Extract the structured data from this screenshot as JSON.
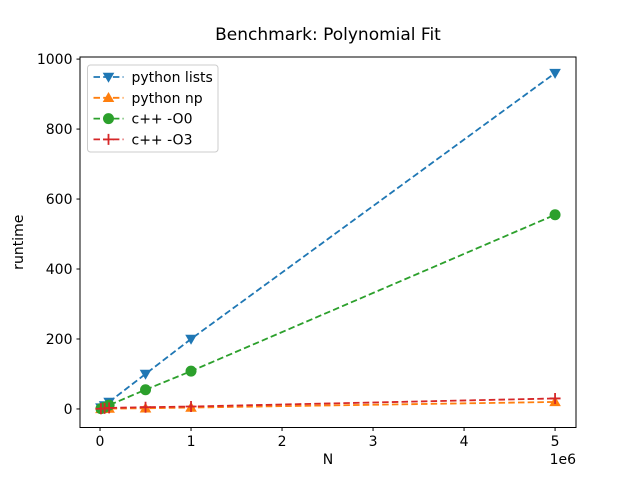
{
  "figure": {
    "title": "Benchmark: Polynomial Fit",
    "xlabel": "N",
    "ylabel": "runtime",
    "x_offset_text": "1e6"
  },
  "axes": {
    "x_tick_labels": [
      "0",
      "1",
      "2",
      "3",
      "4",
      "5"
    ],
    "x_tick_values": [
      0,
      1000000,
      2000000,
      3000000,
      4000000,
      5000000
    ],
    "y_tick_labels": [
      "0",
      "200",
      "400",
      "600",
      "800",
      "1000"
    ],
    "y_tick_values": [
      0,
      200,
      400,
      600,
      800,
      1000
    ],
    "xlim": [
      -220000,
      5230000
    ],
    "ylim": [
      -53,
      1006
    ]
  },
  "legend": {
    "position": "upper-left",
    "entries": [
      {
        "label": "python lists",
        "color": "#1f77b4",
        "marker": "triangle-down",
        "linestyle": "dashed"
      },
      {
        "label": "python np",
        "color": "#ff7f0e",
        "marker": "triangle-up",
        "linestyle": "dashed"
      },
      {
        "label": "c++ -O0",
        "color": "#2ca02c",
        "marker": "circle",
        "linestyle": "dashed"
      },
      {
        "label": "c++ -O3",
        "color": "#d62728",
        "marker": "plus",
        "linestyle": "dashed"
      }
    ]
  },
  "chart_data": {
    "type": "line",
    "title": "Benchmark: Polynomial Fit",
    "xlabel": "N",
    "ylabel": "runtime",
    "x_multiplier_label": "1e6",
    "x": [
      10000,
      50000,
      100000,
      500000,
      1000000,
      5000000
    ],
    "series": [
      {
        "name": "python lists",
        "color": "#1f77b4",
        "marker": "triangle-down",
        "values": [
          4,
          10,
          20,
          100,
          200,
          960
        ]
      },
      {
        "name": "python np",
        "color": "#ff7f0e",
        "marker": "triangle-up",
        "values": [
          0.2,
          0.5,
          1,
          2,
          4,
          20
        ]
      },
      {
        "name": "c++ -O0",
        "color": "#2ca02c",
        "marker": "circle",
        "values": [
          1,
          5,
          11,
          55,
          108,
          555
        ]
      },
      {
        "name": "c++ -O3",
        "color": "#d62728",
        "marker": "plus",
        "values": [
          0.5,
          1.5,
          3,
          5,
          7,
          30
        ]
      }
    ],
    "xlim": [
      -220000,
      5230000
    ],
    "ylim": [
      -53,
      1006
    ],
    "grid": false,
    "legend_position": "upper-left",
    "linestyle": "dashed"
  }
}
